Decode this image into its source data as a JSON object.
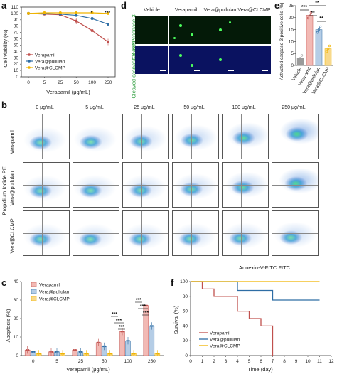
{
  "panels": {
    "a": "a",
    "b": "b",
    "c": "c",
    "d": "d",
    "e": "e",
    "f": "f"
  },
  "panel_a": {
    "ylabel": "Cell viability (%)",
    "xlabel": "Verapamil (μg/mL)",
    "yticks": [
      "0",
      "10",
      "20",
      "30",
      "40",
      "50",
      "60",
      "70",
      "80",
      "90",
      "100",
      "110"
    ],
    "xticks": [
      "0",
      "5",
      "25",
      "50",
      "100",
      "250"
    ],
    "significance": [
      {
        "x_index": 4,
        "label": "*"
      },
      {
        "x_index": 5,
        "label": "***"
      }
    ],
    "legend": [
      "Verapamil",
      "Vera@pullulan",
      "Vera@CLCMP"
    ]
  },
  "panel_d": {
    "columns": [
      "Vehicle",
      "Verapamil",
      "Vera@pullulan",
      "Vera@CLCMP"
    ],
    "rows": [
      "Cleaved caspase-3",
      "Cleaved caspase-3 /DAPI"
    ]
  },
  "panel_e": {
    "ylabel": "Activated caspase-3 positive cells (%)",
    "yticks": [
      "0",
      "5",
      "10",
      "15",
      "20",
      "25"
    ],
    "categories": [
      "Vehicle",
      "Verapamil",
      "Vera@pullulan",
      "Vera@CLCMP"
    ],
    "significance": [
      "***",
      "**",
      "**",
      "**"
    ]
  },
  "panel_b": {
    "columns": [
      "0 μg/mL",
      "5 μg/mL",
      "25 μg/mL",
      "50 μg/mL",
      "100 μg/mL",
      "250 μg/mL"
    ],
    "rows": [
      "Verapamil",
      "Vera@pullulan",
      "Vera@CLCMP"
    ],
    "ylabel": "Propidium Iodide PE",
    "xlabel": "Annexin-V-FITC:FITC"
  },
  "panel_c": {
    "ylabel": "Apoptosis (%)",
    "xlabel": "Verapamil (μg/mL)",
    "yticks": [
      "0",
      "10",
      "20",
      "30",
      "40"
    ],
    "xticks": [
      "0",
      "5",
      "25",
      "50",
      "100",
      "250"
    ],
    "legend": [
      "Verapamil",
      "Vera@pullulan",
      "Vera@CLCMP"
    ],
    "significance": [
      "***",
      "***",
      "***",
      "***",
      "***",
      "***"
    ]
  },
  "panel_f": {
    "ylabel": "Survival (%)",
    "xlabel": "Time (day)",
    "yticks": [
      "0",
      "20",
      "40",
      "60",
      "80",
      "100"
    ],
    "xticks": [
      "0",
      "1",
      "2",
      "3",
      "4",
      "5",
      "6",
      "7",
      "8",
      "9",
      "10",
      "11",
      "12"
    ],
    "legend": [
      "Verapamil",
      "Vera@pullulan",
      "Vera@CLCMP"
    ]
  },
  "colors": {
    "verapamil": "#c0504d",
    "pullulan": "#2e6da4",
    "clcmp": "#f0b400",
    "vehicle_gray": "#9a9a9a",
    "bar_red": "#f2b9b4",
    "bar_blue": "#b5cde6",
    "bar_yellow": "#f8d98b"
  },
  "chart_data": [
    {
      "panel": "a",
      "type": "line",
      "x": [
        0,
        5,
        25,
        50,
        100,
        250
      ],
      "ylim": [
        0,
        110
      ],
      "series": [
        {
          "name": "Verapamil",
          "values": [
            100,
            99,
            98,
            88,
            73,
            55
          ]
        },
        {
          "name": "Vera@pullulan",
          "values": [
            100,
            100,
            99,
            97,
            92,
            83
          ]
        },
        {
          "name": "Vera@CLCMP",
          "values": [
            100,
            101,
            101,
            101,
            101,
            100
          ]
        }
      ]
    },
    {
      "panel": "e",
      "type": "bar",
      "categories": [
        "Vehicle",
        "Verapamil",
        "Vera@pullulan",
        "Vera@CLCMP"
      ],
      "values": [
        3,
        21,
        15,
        7
      ],
      "ylim": [
        0,
        25
      ]
    },
    {
      "panel": "c",
      "type": "bar",
      "categories": [
        "0",
        "5",
        "25",
        "50",
        "100",
        "250"
      ],
      "ylim": [
        0,
        40
      ],
      "series": [
        {
          "name": "Verapamil",
          "values": [
            3,
            2,
            3,
            7,
            13,
            27
          ]
        },
        {
          "name": "Vera@pullulan",
          "values": [
            2,
            2,
            2,
            5,
            8,
            16
          ]
        },
        {
          "name": "Vera@CLCMP",
          "values": [
            1,
            1,
            1,
            1,
            1,
            1
          ]
        }
      ]
    },
    {
      "panel": "f",
      "type": "line",
      "xlim": [
        0,
        12
      ],
      "ylim": [
        0,
        100
      ],
      "series": [
        {
          "name": "Verapamil",
          "x": [
            0,
            1,
            1,
            2,
            2,
            4,
            4,
            5,
            5,
            6,
            6,
            7,
            7
          ],
          "values": [
            100,
            100,
            90,
            90,
            80,
            80,
            60,
            60,
            50,
            50,
            40,
            40,
            0
          ]
        },
        {
          "name": "Vera@pullulan",
          "x": [
            0,
            4,
            4,
            7,
            7,
            11
          ],
          "values": [
            100,
            100,
            88,
            88,
            75,
            75
          ]
        },
        {
          "name": "Vera@CLCMP",
          "x": [
            0,
            11
          ],
          "values": [
            100,
            100
          ]
        }
      ]
    }
  ]
}
